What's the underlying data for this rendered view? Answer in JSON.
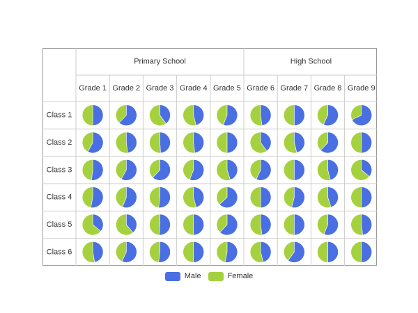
{
  "colors": {
    "male": "#4a6fe3",
    "female": "#a6d13f",
    "grid": "#cccccc",
    "frame": "#999999"
  },
  "chart_data": {
    "type": "pie",
    "title": "",
    "groups": [
      {
        "label": "Primary School",
        "columns": [
          "Grade 1",
          "Grade 2",
          "Grade 3",
          "Grade 4",
          "Grade 5"
        ]
      },
      {
        "label": "High School",
        "columns": [
          "Grade 6",
          "Grade 7",
          "Grade 8",
          "Grade 9"
        ]
      }
    ],
    "columns": [
      "Grade 1",
      "Grade 2",
      "Grade 3",
      "Grade 4",
      "Grade 5",
      "Grade 6",
      "Grade 7",
      "Grade 8",
      "Grade 9"
    ],
    "rows": [
      "Class 1",
      "Class 2",
      "Class 3",
      "Class 4",
      "Class 5",
      "Class 6"
    ],
    "series": [
      "Male",
      "Female"
    ],
    "male_share": [
      [
        0.5,
        0.62,
        0.4,
        0.46,
        0.56,
        0.48,
        0.5,
        0.57,
        0.68
      ],
      [
        0.58,
        0.48,
        0.49,
        0.48,
        0.5,
        0.4,
        0.46,
        0.62,
        0.5
      ],
      [
        0.52,
        0.58,
        0.62,
        0.56,
        0.45,
        0.57,
        0.5,
        0.46,
        0.36
      ],
      [
        0.53,
        0.56,
        0.52,
        0.46,
        0.63,
        0.5,
        0.54,
        0.45,
        0.5
      ],
      [
        0.36,
        0.39,
        0.51,
        0.5,
        0.62,
        0.48,
        0.5,
        0.56,
        0.48
      ],
      [
        0.47,
        0.57,
        0.52,
        0.5,
        0.53,
        0.46,
        0.6,
        0.5,
        0.5
      ]
    ]
  },
  "legend": {
    "male": "Male",
    "female": "Female"
  }
}
